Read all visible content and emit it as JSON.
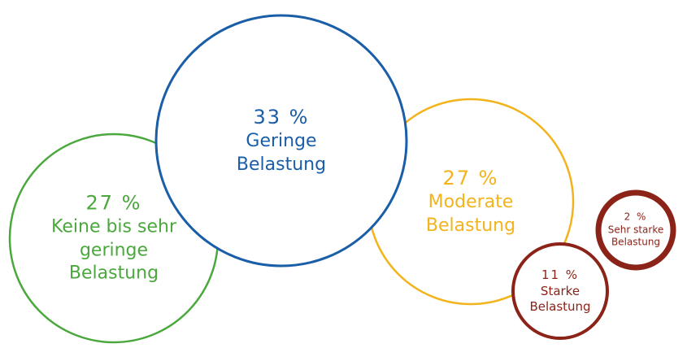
{
  "chart_data": {
    "type": "bubble",
    "categories": [
      "Keine bis sehr geringe Belastung",
      "Geringe Belastung",
      "Moderate Belastung",
      "Starke Belastung",
      "Sehr starke Belastung"
    ],
    "values": [
      27,
      33,
      27,
      11,
      2
    ],
    "value_labels": [
      "27 %",
      "33 %",
      "27 %",
      "11 %",
      "2 %"
    ],
    "colors": [
      "#4aa83c",
      "#1a5ea8",
      "#f2b41c",
      "#8b2318",
      "#8b2318"
    ]
  }
}
